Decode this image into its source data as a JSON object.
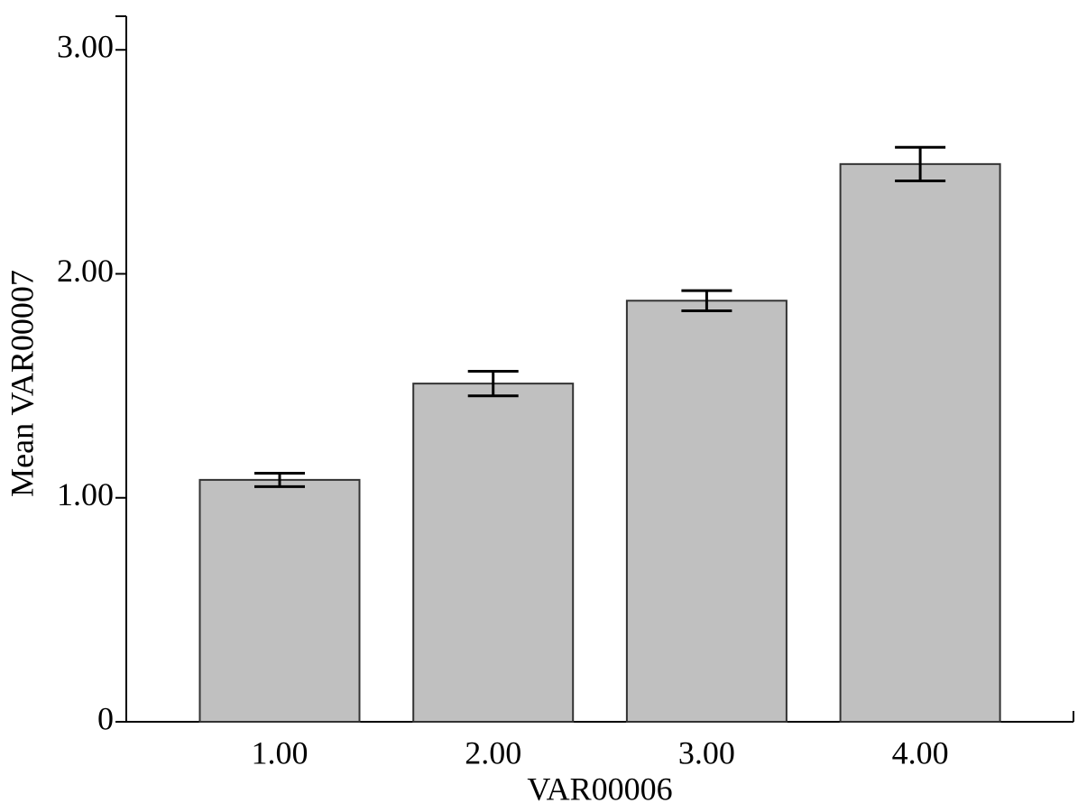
{
  "chart_data": {
    "type": "bar",
    "x_label": "VAR00006",
    "y_label": "Mean VAR00007",
    "categories": [
      "1.00",
      "2.00",
      "3.00",
      "4.00"
    ],
    "values": [
      1.08,
      1.51,
      1.88,
      2.49
    ],
    "errors": [
      0.03,
      0.055,
      0.045,
      0.075
    ],
    "color": "#c0c0c0",
    "ylim": [
      0,
      3.15
    ],
    "yticks": [
      0,
      {
        "value": 1,
        "label": "1.00"
      },
      {
        "value": 2,
        "label": "2.00"
      },
      {
        "value": 3,
        "label": "3.00"
      }
    ],
    "grid": false
  }
}
